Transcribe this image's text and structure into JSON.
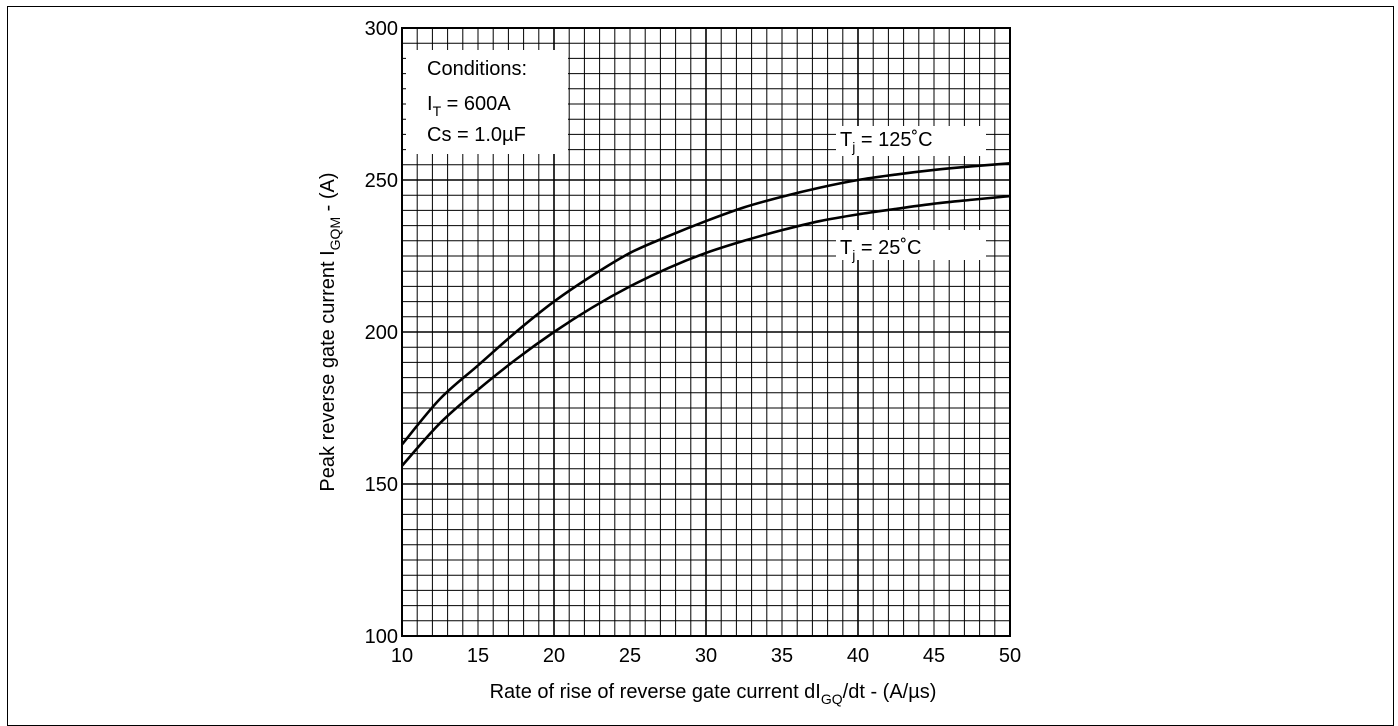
{
  "chart_data": {
    "type": "line",
    "xlabel": {
      "main": "Rate of rise of reverse gate current  dI",
      "sub": "GQ",
      "tail": "/dt - (A/µs)"
    },
    "ylabel": {
      "main": "Peak reverse gate current I",
      "sub": "GQM",
      "tail": " - (A)"
    },
    "xlim": [
      10,
      50
    ],
    "ylim": [
      100,
      300
    ],
    "x_ticks": [
      "10",
      "15",
      "20",
      "25",
      "30",
      "35",
      "40",
      "45",
      "50"
    ],
    "y_ticks": [
      "100",
      "150",
      "200",
      "250",
      "300"
    ],
    "grid": true,
    "conditions": {
      "title": "Conditions:",
      "it_main": "I",
      "it_sub": "T",
      "it_value": " = 600A",
      "cs": "Cs = 1.0µF"
    },
    "series": [
      {
        "name": "Tj = 125˚C",
        "label_main": "T",
        "label_sub": "j",
        "label_tail": " = 125˚C",
        "x": [
          10,
          12.5,
          15,
          17.5,
          20,
          22.5,
          25,
          27.5,
          30,
          32.5,
          35,
          37.5,
          40,
          42.5,
          45,
          47.5,
          50
        ],
        "y": [
          163,
          178,
          189,
          200,
          210,
          218.5,
          226,
          231.5,
          236.5,
          241,
          244.5,
          247.5,
          250,
          251.8,
          253.3,
          254.5,
          255.5
        ]
      },
      {
        "name": "Tj = 25˚C",
        "label_main": "T",
        "label_sub": "j",
        "label_tail": " = 25˚C",
        "x": [
          10,
          12.5,
          15,
          17.5,
          20,
          22.5,
          25,
          27.5,
          30,
          32.5,
          35,
          37.5,
          40,
          42.5,
          45,
          47.5,
          50
        ],
        "y": [
          156,
          170,
          181,
          191,
          200,
          208,
          215,
          221,
          226,
          230,
          233.5,
          236.5,
          238.7,
          240.5,
          242.2,
          243.5,
          244.7
        ]
      }
    ]
  }
}
